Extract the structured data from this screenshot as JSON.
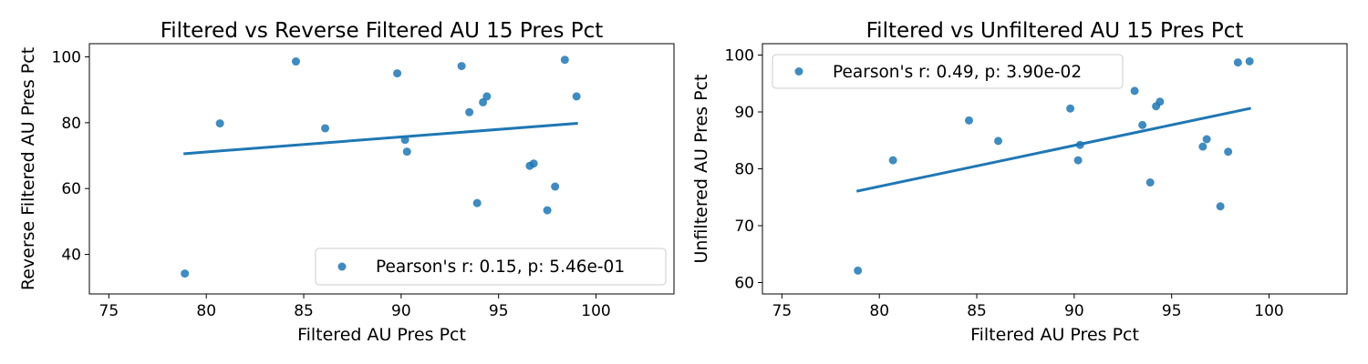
{
  "chart_data": [
    {
      "type": "scatter",
      "title": "Filtered vs Reverse Filtered AU 15 Pres Pct",
      "xlabel": "Filtered AU Pres Pct",
      "ylabel": "Reverse Filtered AU Pres Pct",
      "xlim": [
        74,
        104
      ],
      "ylim": [
        28,
        104
      ],
      "xticks": [
        75,
        80,
        85,
        90,
        95,
        100
      ],
      "yticks": [
        40,
        60,
        80,
        100
      ],
      "grid": false,
      "legend_position": "lower-right",
      "color": "#1f77b4",
      "series": [
        {
          "name": "Pearson's r: 0.15, p: 5.46e-01",
          "points": [
            {
              "x": 78.9,
              "y": 34.2
            },
            {
              "x": 80.7,
              "y": 79.8
            },
            {
              "x": 84.6,
              "y": 98.6
            },
            {
              "x": 86.1,
              "y": 78.3
            },
            {
              "x": 89.8,
              "y": 95.0
            },
            {
              "x": 90.2,
              "y": 74.8
            },
            {
              "x": 90.3,
              "y": 71.2
            },
            {
              "x": 93.1,
              "y": 97.2
            },
            {
              "x": 93.5,
              "y": 83.2
            },
            {
              "x": 93.9,
              "y": 55.6
            },
            {
              "x": 94.2,
              "y": 86.2
            },
            {
              "x": 94.4,
              "y": 88.0
            },
            {
              "x": 96.6,
              "y": 66.9
            },
            {
              "x": 96.8,
              "y": 67.6
            },
            {
              "x": 97.5,
              "y": 53.4
            },
            {
              "x": 97.9,
              "y": 60.6
            },
            {
              "x": 98.4,
              "y": 99.1
            },
            {
              "x": 99.0,
              "y": 88.0
            }
          ]
        }
      ],
      "fit_line": {
        "x": [
          78.9,
          99.0
        ],
        "y": [
          70.6,
          79.8
        ]
      }
    },
    {
      "type": "scatter",
      "title": "Filtered vs Unfiltered AU 15 Pres Pct",
      "xlabel": "Filtered AU Pres Pct",
      "ylabel": "Unfiltered AU Pres Pct",
      "xlim": [
        74,
        104
      ],
      "ylim": [
        58,
        102
      ],
      "xticks": [
        75,
        80,
        85,
        90,
        95,
        100
      ],
      "yticks": [
        60,
        70,
        80,
        90,
        100
      ],
      "grid": false,
      "legend_position": "upper-left",
      "color": "#1f77b4",
      "series": [
        {
          "name": "Pearson's r: 0.49, p: 3.90e-02",
          "points": [
            {
              "x": 78.9,
              "y": 62.1
            },
            {
              "x": 80.7,
              "y": 81.5
            },
            {
              "x": 84.6,
              "y": 88.5
            },
            {
              "x": 86.1,
              "y": 84.9
            },
            {
              "x": 89.8,
              "y": 90.6
            },
            {
              "x": 90.2,
              "y": 81.5
            },
            {
              "x": 90.3,
              "y": 84.2
            },
            {
              "x": 93.1,
              "y": 93.7
            },
            {
              "x": 93.5,
              "y": 87.7
            },
            {
              "x": 93.9,
              "y": 77.6
            },
            {
              "x": 94.2,
              "y": 91.0
            },
            {
              "x": 94.4,
              "y": 91.8
            },
            {
              "x": 96.6,
              "y": 83.9
            },
            {
              "x": 96.8,
              "y": 85.2
            },
            {
              "x": 97.5,
              "y": 73.4
            },
            {
              "x": 97.9,
              "y": 83.0
            },
            {
              "x": 98.4,
              "y": 98.7
            },
            {
              "x": 99.0,
              "y": 98.9
            }
          ]
        }
      ],
      "fit_line": {
        "x": [
          78.9,
          99.0
        ],
        "y": [
          76.1,
          90.6
        ]
      }
    }
  ]
}
